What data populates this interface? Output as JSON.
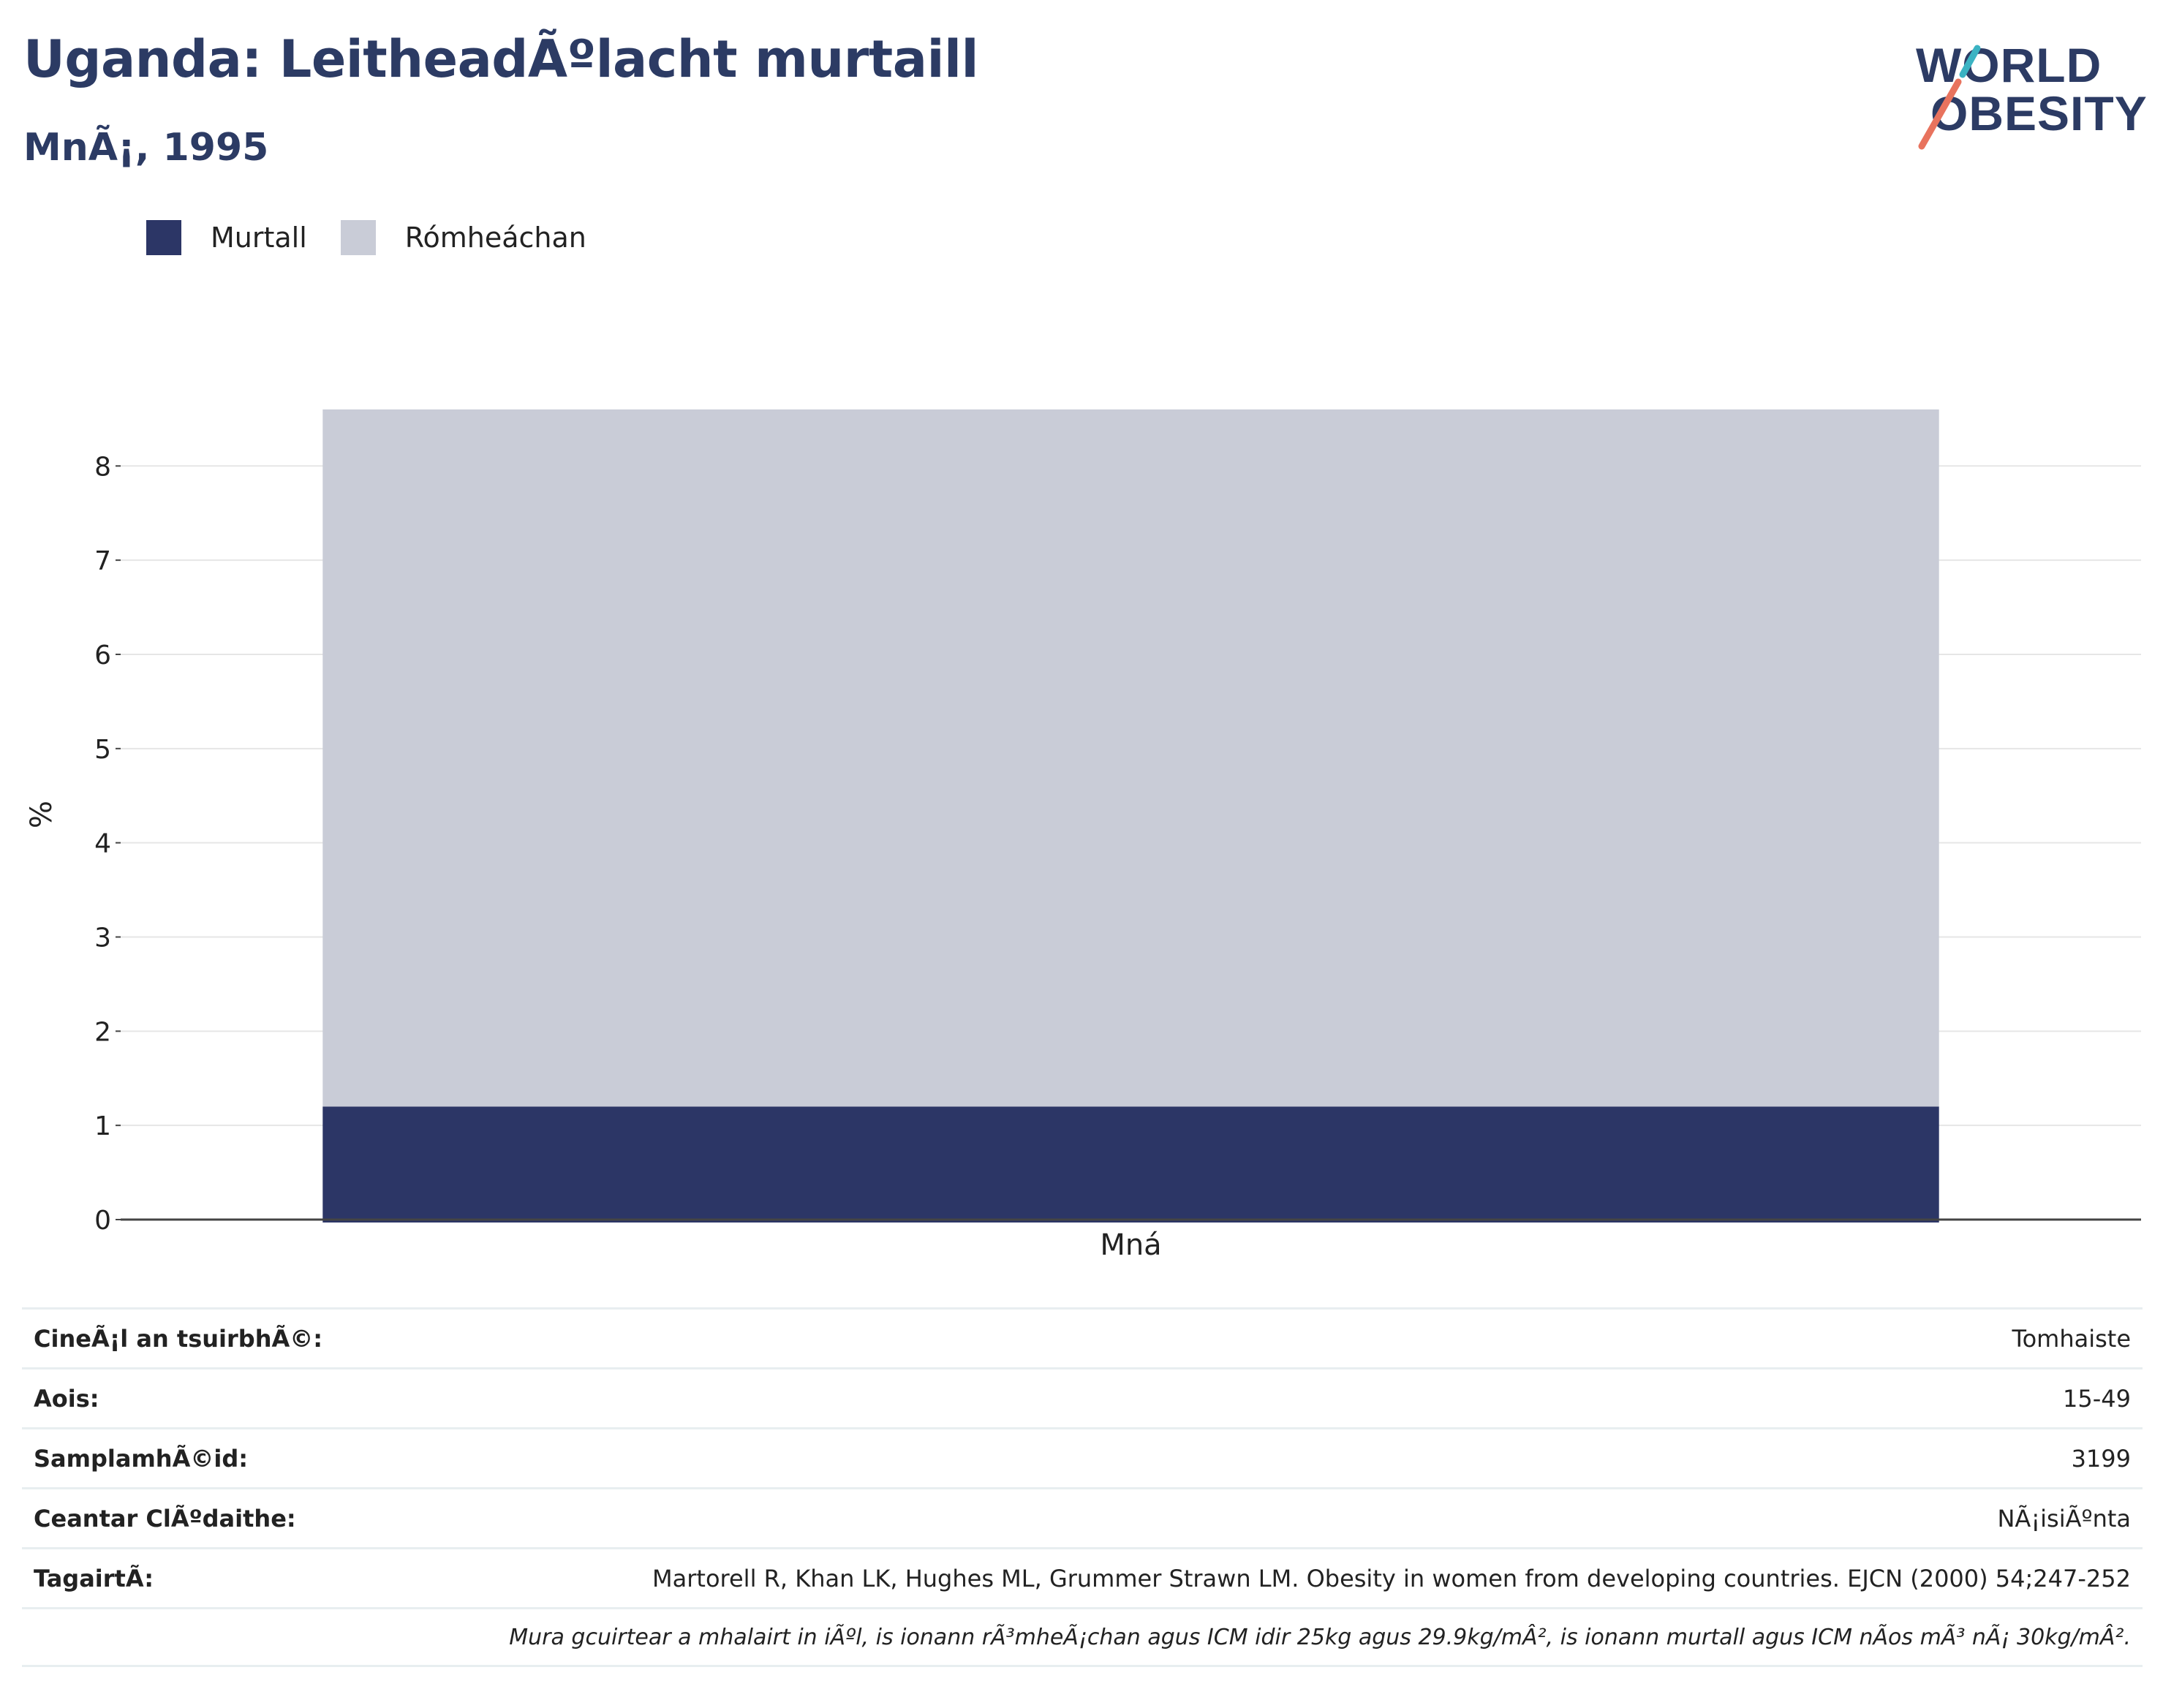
{
  "header": {
    "title": "Uganda: LeitheadÃºlacht murtaill",
    "subtitle": "MnÃ¡, 1995"
  },
  "logo": {
    "line1": "WORLD",
    "line2": "OBESITY",
    "icon": "slash-logo-icon",
    "colors": {
      "text": "#2c3b64",
      "accent_teal": "#3bb3c3",
      "accent_coral": "#e8735e"
    }
  },
  "chart_data": {
    "type": "bar",
    "stacked": true,
    "categories": [
      "Mná"
    ],
    "series": [
      {
        "name": "Murtall",
        "values": [
          1.2
        ],
        "color": "#2c3666"
      },
      {
        "name": "Rómheáchan",
        "values": [
          7.4
        ],
        "color": "#c9ccd7"
      }
    ],
    "xlabel": "",
    "ylabel": "%",
    "ylim": [
      0,
      8.6
    ],
    "yticks": [
      0,
      1,
      2,
      3,
      4,
      5,
      6,
      7,
      8
    ],
    "grid": true,
    "legend": "top-left"
  },
  "info": {
    "rows": [
      {
        "label": "CineÃ¡l an tsuirbhÃ©:",
        "value": "Tomhaiste"
      },
      {
        "label": "Aois:",
        "value": "15-49"
      },
      {
        "label": "SamplamhÃ©id:",
        "value": "3199"
      },
      {
        "label": "Ceantar ClÃºdaithe:",
        "value": "NÃ¡isiÃºnta"
      },
      {
        "label": "TagairtÃ:",
        "value": "Martorell R, Khan LK, Hughes ML, Grummer Strawn LM. Obesity in women from developing countries. EJCN (2000) 54;247-252"
      }
    ],
    "note": "Mura gcuirtear a mhalairt in iÃºl, is ionann rÃ³mheÃ¡chan agus ICM idir 25kg agus 29.9kg/mÂ², is ionann murtall agus ICM nÃos mÃ³ nÃ¡ 30kg/mÂ²."
  }
}
